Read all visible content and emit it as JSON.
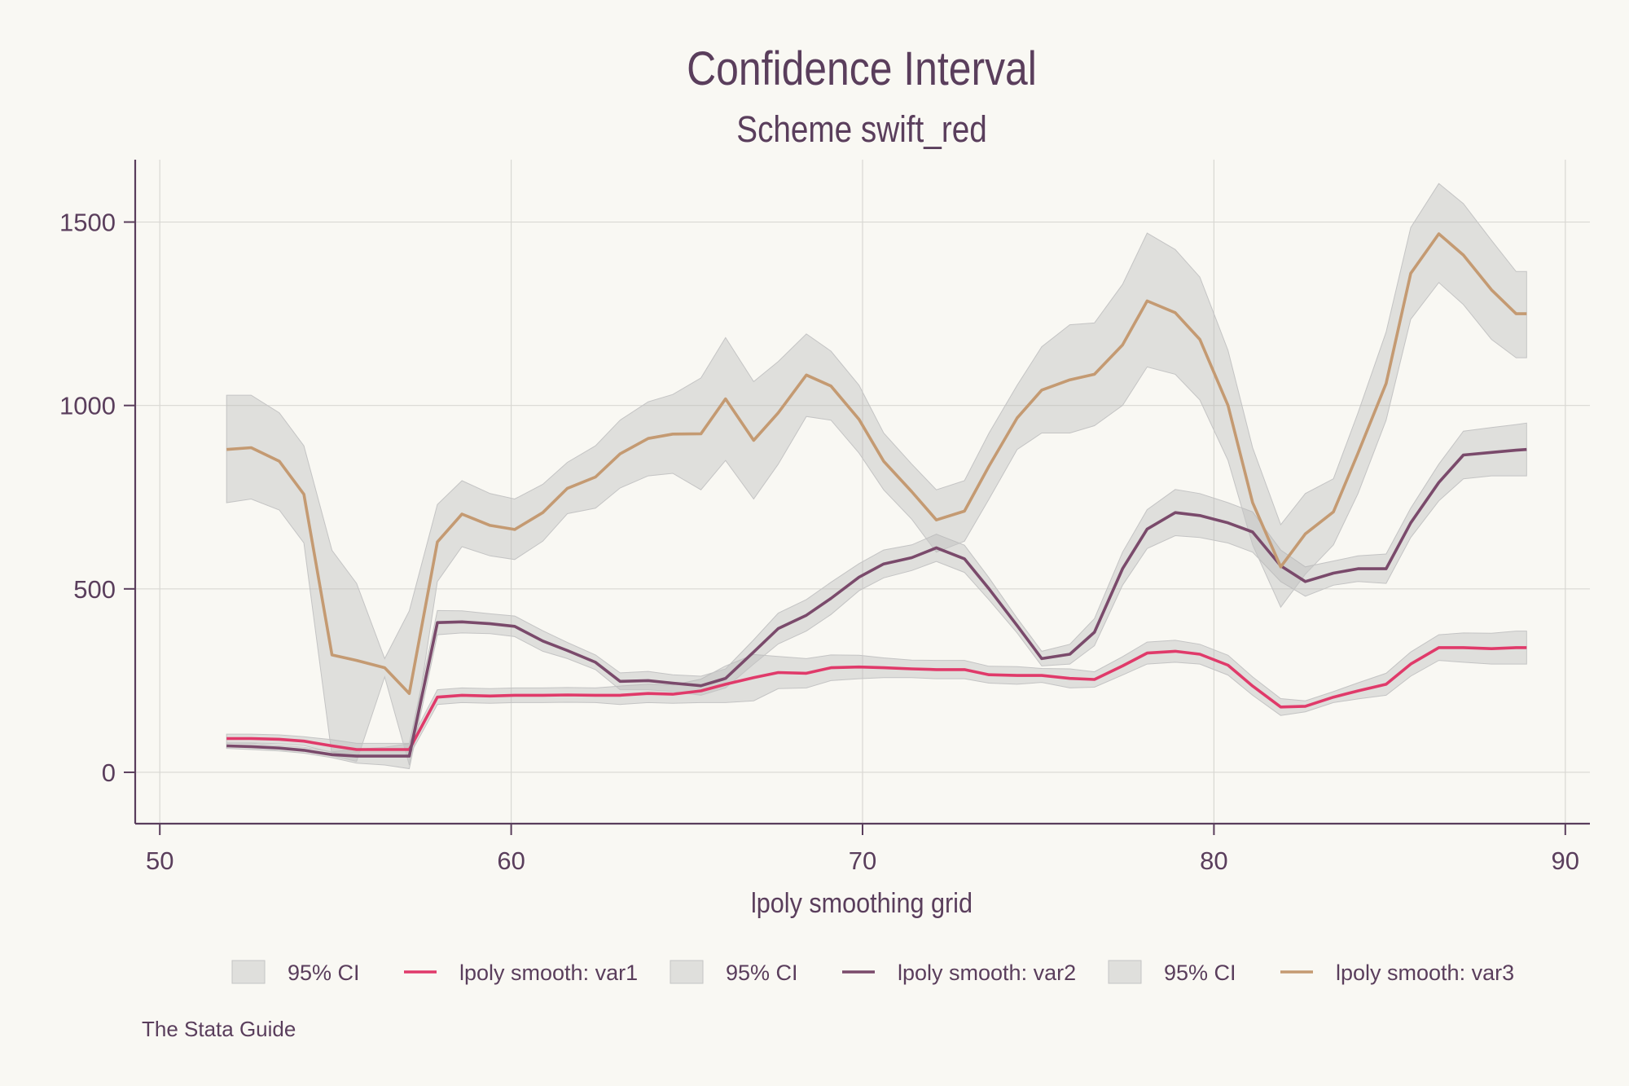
{
  "chart_data": {
    "type": "line",
    "title": "Confidence Interval",
    "subtitle": "Scheme swift_red",
    "xlabel": "lpoly smoothing grid",
    "ylabel": "",
    "xlim": [
      49.3,
      90.7
    ],
    "ylim": [
      -140,
      1670
    ],
    "xticks": [
      50,
      60,
      70,
      80,
      90
    ],
    "yticks": [
      0,
      500,
      1000,
      1500
    ],
    "grid": true,
    "legend_position": "bottom",
    "note": "The Stata Guide",
    "x": [
      51.9,
      52.6,
      53.4,
      54.1,
      54.9,
      55.6,
      56.4,
      57.1,
      57.9,
      58.6,
      59.4,
      60.1,
      60.9,
      61.6,
      62.4,
      63.1,
      63.9,
      64.6,
      65.4,
      66.1,
      66.9,
      67.6,
      68.4,
      69.1,
      69.9,
      70.6,
      71.4,
      72.1,
      72.9,
      73.6,
      74.4,
      75.1,
      75.9,
      76.6,
      77.4,
      78.1,
      78.9,
      79.6,
      80.4,
      81.1,
      81.9,
      82.6,
      83.4,
      84.1,
      84.9,
      85.6,
      86.4,
      87.1,
      87.9,
      88.6,
      88.9
    ],
    "series": [
      {
        "name": "lpoly smooth: var1",
        "color": "#e03a6a",
        "values": [
          92,
          92,
          90,
          85,
          72,
          62,
          62,
          62,
          205,
          210,
          208,
          210,
          210,
          211,
          210,
          210,
          215,
          213,
          222,
          240,
          258,
          272,
          270,
          285,
          287,
          285,
          282,
          280,
          280,
          266,
          264,
          264,
          256,
          253,
          290,
          325,
          330,
          322,
          292,
          235,
          178,
          180,
          205,
          222,
          240,
          295,
          340,
          340,
          337,
          340,
          340
        ],
        "ci_low": [
          80,
          80,
          78,
          73,
          55,
          45,
          45,
          45,
          185,
          190,
          188,
          190,
          190,
          191,
          190,
          185,
          190,
          188,
          190,
          190,
          195,
          228,
          230,
          250,
          255,
          258,
          258,
          255,
          255,
          243,
          240,
          245,
          230,
          232,
          265,
          295,
          300,
          295,
          265,
          210,
          155,
          165,
          190,
          200,
          210,
          262,
          305,
          300,
          295,
          295,
          295
        ],
        "ci_high": [
          104,
          104,
          102,
          97,
          89,
          79,
          79,
          79,
          225,
          230,
          228,
          230,
          230,
          231,
          230,
          235,
          240,
          238,
          254,
          290,
          321,
          316,
          310,
          320,
          319,
          312,
          306,
          305,
          305,
          289,
          288,
          283,
          282,
          274,
          315,
          355,
          360,
          349,
          319,
          260,
          201,
          195,
          220,
          244,
          270,
          328,
          375,
          380,
          379,
          385,
          385
        ]
      },
      {
        "name": "lpoly smooth: var2",
        "color": "#7a4a6b",
        "values": [
          72,
          70,
          66,
          60,
          48,
          44,
          44,
          44,
          408,
          410,
          405,
          398,
          358,
          332,
          300,
          248,
          250,
          243,
          236,
          256,
          328,
          392,
          428,
          474,
          532,
          568,
          585,
          612,
          582,
          500,
          400,
          310,
          322,
          382,
          555,
          663,
          708,
          700,
          680,
          655,
          563,
          520,
          543,
          555,
          555,
          680,
          790,
          865,
          872,
          878,
          880
        ],
        "ci_low": [
          65,
          62,
          58,
          52,
          40,
          25,
          20,
          10,
          375,
          380,
          378,
          370,
          330,
          310,
          280,
          225,
          225,
          220,
          210,
          230,
          295,
          350,
          385,
          430,
          495,
          530,
          550,
          575,
          545,
          470,
          380,
          290,
          295,
          345,
          510,
          610,
          645,
          640,
          625,
          600,
          520,
          480,
          510,
          520,
          515,
          640,
          740,
          800,
          808,
          808,
          808
        ],
        "ci_high": [
          79,
          78,
          74,
          68,
          56,
          63,
          68,
          78,
          441,
          440,
          432,
          426,
          386,
          354,
          320,
          271,
          275,
          266,
          262,
          282,
          361,
          434,
          471,
          518,
          569,
          606,
          620,
          649,
          619,
          530,
          420,
          330,
          349,
          419,
          600,
          716,
          771,
          760,
          735,
          710,
          606,
          560,
          576,
          590,
          595,
          720,
          840,
          930,
          940,
          948,
          952
        ]
      },
      {
        "name": "lpoly smooth: var3",
        "color": "#c49a72",
        "values": [
          880,
          885,
          848,
          758,
          320,
          305,
          285,
          215,
          628,
          704,
          673,
          662,
          708,
          774,
          805,
          868,
          910,
          922,
          923,
          1018,
          905,
          980,
          1083,
          1053,
          962,
          848,
          765,
          688,
          712,
          835,
          966,
          1042,
          1070,
          1085,
          1165,
          1285,
          1253,
          1180,
          1000,
          735,
          560,
          650,
          710,
          870,
          1060,
          1360,
          1468,
          1410,
          1315,
          1250,
          1250
        ],
        "ci_low": [
          735,
          745,
          715,
          625,
          45,
          30,
          260,
          20,
          520,
          615,
          590,
          580,
          630,
          705,
          720,
          775,
          808,
          815,
          770,
          850,
          745,
          840,
          970,
          960,
          870,
          770,
          690,
          600,
          630,
          745,
          880,
          925,
          925,
          945,
          1000,
          1105,
          1085,
          1015,
          850,
          620,
          450,
          540,
          620,
          760,
          960,
          1235,
          1335,
          1275,
          1180,
          1130,
          1130
        ],
        "ci_high": [
          1028,
          1028,
          980,
          890,
          605,
          515,
          310,
          440,
          730,
          795,
          760,
          745,
          785,
          845,
          890,
          960,
          1010,
          1030,
          1075,
          1185,
          1065,
          1120,
          1195,
          1148,
          1055,
          925,
          840,
          770,
          795,
          925,
          1055,
          1160,
          1220,
          1225,
          1330,
          1470,
          1425,
          1350,
          1150,
          885,
          675,
          760,
          800,
          980,
          1200,
          1485,
          1605,
          1550,
          1450,
          1365,
          1365
        ]
      }
    ],
    "legend": [
      {
        "label": "95% CI",
        "kind": "area"
      },
      {
        "label": "lpoly smooth: var1",
        "kind": "line"
      },
      {
        "label": "95% CI",
        "kind": "area"
      },
      {
        "label": "lpoly smooth: var2",
        "kind": "line"
      },
      {
        "label": "95% CI",
        "kind": "area"
      },
      {
        "label": "lpoly smooth: var3",
        "kind": "line"
      }
    ],
    "colors": {
      "background": "#f9f8f3",
      "text": "#5a3e5c",
      "axis": "#5a3e5c",
      "grid": "#d9d8d3",
      "ci_fill": "#b9b9b9",
      "ci_border": "#c4c4c4"
    }
  }
}
